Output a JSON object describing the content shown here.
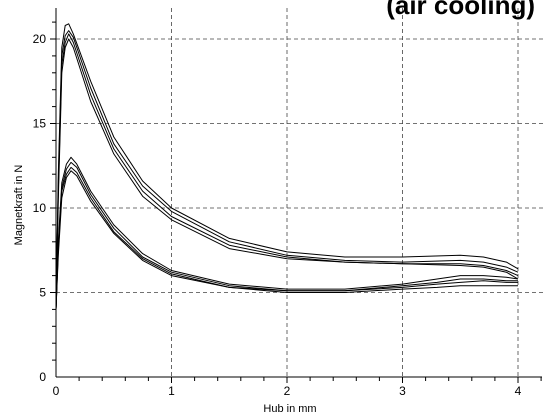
{
  "chart_data": {
    "type": "line",
    "title": "(air cooling)",
    "xlabel": "Hub in mm",
    "ylabel": "Magnetkraft in N",
    "xlim": [
      0,
      4.2
    ],
    "ylim": [
      0,
      21.7
    ],
    "xticks": [
      0,
      1,
      2,
      3,
      4
    ],
    "yticks": [
      0,
      5,
      10,
      15,
      20
    ],
    "xtick_labels": [
      "0",
      "1",
      "2",
      "3",
      "4"
    ],
    "ytick_labels": [
      "0",
      "5",
      "10",
      "15",
      "20"
    ],
    "grid": true,
    "series": [
      {
        "x": [
          0,
          0.02,
          0.05,
          0.08,
          0.11,
          0.15,
          0.3,
          0.5,
          0.75,
          1,
          1.5,
          2,
          2.5,
          3,
          3.5,
          3.7,
          3.9,
          4
        ],
        "y": [
          4,
          12,
          19.5,
          20.8,
          20.9,
          20.3,
          17.5,
          14.2,
          11.6,
          10,
          8.2,
          7.4,
          7.1,
          7.1,
          7.2,
          7.1,
          6.8,
          6.4
        ]
      },
      {
        "x": [
          0,
          0.02,
          0.05,
          0.08,
          0.11,
          0.15,
          0.3,
          0.5,
          0.75,
          1,
          1.5,
          2,
          2.5,
          3,
          3.5,
          3.7,
          3.9,
          4
        ],
        "y": [
          4,
          11.5,
          19.0,
          20.2,
          20.5,
          20.1,
          17.1,
          13.8,
          11.3,
          9.8,
          8.0,
          7.2,
          6.9,
          6.8,
          6.9,
          6.8,
          6.5,
          6.2
        ]
      },
      {
        "x": [
          0,
          0.02,
          0.05,
          0.08,
          0.11,
          0.15,
          0.3,
          0.5,
          0.75,
          1,
          1.5,
          2,
          2.5,
          3,
          3.5,
          3.7,
          3.9,
          4
        ],
        "y": [
          4,
          11,
          18.5,
          19.8,
          20.3,
          19.8,
          16.7,
          13.5,
          11.0,
          9.5,
          7.8,
          7.1,
          6.8,
          6.7,
          6.7,
          6.6,
          6.3,
          6.0
        ]
      },
      {
        "x": [
          0,
          0.02,
          0.05,
          0.08,
          0.11,
          0.15,
          0.3,
          0.5,
          0.75,
          1,
          1.5,
          2,
          2.5,
          3,
          3.5,
          3.7,
          3.9,
          4
        ],
        "y": [
          4,
          10.5,
          18,
          19.5,
          20.0,
          19.5,
          16.3,
          13.2,
          10.7,
          9.3,
          7.6,
          7.0,
          6.8,
          6.7,
          6.6,
          6.5,
          6.2,
          5.8
        ]
      },
      {
        "x": [
          0,
          0.02,
          0.05,
          0.09,
          0.13,
          0.18,
          0.3,
          0.5,
          0.75,
          1,
          1.5,
          2,
          2.5,
          3,
          3.3,
          3.5,
          3.7,
          3.9,
          4
        ],
        "y": [
          4,
          8,
          11.5,
          12.6,
          13.0,
          12.6,
          11.0,
          9.0,
          7.3,
          6.3,
          5.5,
          5.2,
          5.2,
          5.5,
          5.8,
          6.0,
          6.0,
          5.9,
          5.8
        ]
      },
      {
        "x": [
          0,
          0.02,
          0.05,
          0.09,
          0.13,
          0.18,
          0.3,
          0.5,
          0.75,
          1,
          1.5,
          2,
          2.5,
          3,
          3.3,
          3.5,
          3.7,
          3.9,
          4
        ],
        "y": [
          4,
          7.8,
          11.2,
          12.3,
          12.7,
          12.4,
          10.8,
          8.8,
          7.1,
          6.2,
          5.4,
          5.1,
          5.1,
          5.4,
          5.6,
          5.8,
          5.8,
          5.7,
          5.7
        ]
      },
      {
        "x": [
          0,
          0.02,
          0.05,
          0.09,
          0.13,
          0.18,
          0.3,
          0.5,
          0.75,
          1,
          1.5,
          2,
          2.5,
          3,
          3.3,
          3.5,
          3.7,
          3.9,
          4
        ],
        "y": [
          4,
          7.5,
          11.0,
          12.0,
          12.4,
          12.1,
          10.6,
          8.6,
          7.0,
          6.1,
          5.3,
          5.1,
          5.1,
          5.3,
          5.5,
          5.6,
          5.7,
          5.6,
          5.6
        ]
      },
      {
        "x": [
          0,
          0.02,
          0.05,
          0.09,
          0.13,
          0.18,
          0.3,
          0.5,
          0.75,
          1,
          1.5,
          2,
          2.5,
          3,
          3.3,
          3.5,
          3.7,
          3.9,
          4
        ],
        "y": [
          4,
          7.2,
          10.6,
          11.8,
          12.2,
          11.9,
          10.4,
          8.5,
          6.9,
          6.0,
          5.3,
          5.0,
          5.0,
          5.2,
          5.3,
          5.4,
          5.4,
          5.4,
          5.4
        ]
      }
    ]
  }
}
